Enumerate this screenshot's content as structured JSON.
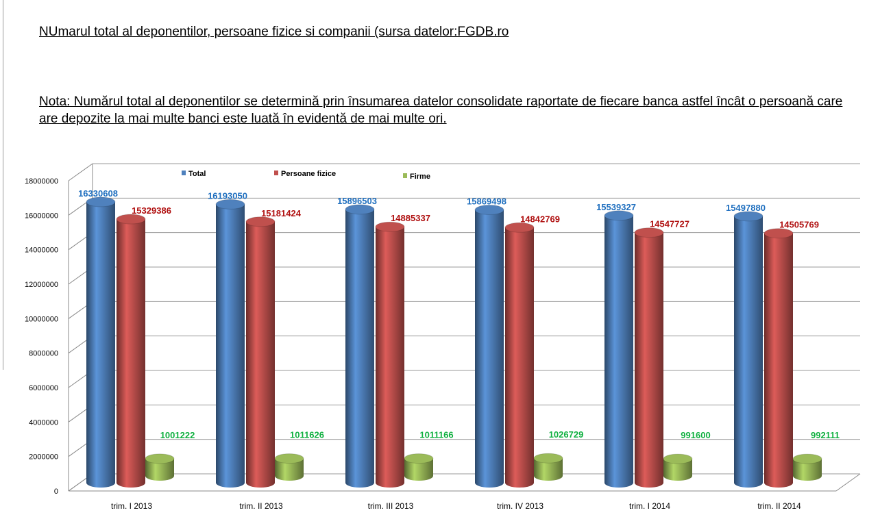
{
  "title": "NUmarul total al deponentilor, persoane fizice si companii (sursa datelor:FGDB.ro",
  "note": "Nota: Numărul total al deponentilor se determină prin însumarea datelor consolidate raportate de fiecare banca astfel încât o persoană care are depozite la mai multe banci este luată în evidentă de mai multe ori.",
  "chart_data": {
    "type": "bar",
    "title": "",
    "categories": [
      "trim. I 2013",
      "trim. II 2013",
      "trim. III 2013",
      "trim. IV 2013",
      "trim. I 2014",
      "trim. II 2014"
    ],
    "series": [
      {
        "name": "Total",
        "color": "#4f81bd",
        "label_color": "#1f6fbf",
        "values": [
          16330608,
          16193050,
          15896503,
          15869498,
          15539327,
          15497880
        ]
      },
      {
        "name": "Persoane fizice",
        "color": "#c0504d",
        "label_color": "#b01010",
        "values": [
          15329386,
          15181424,
          14885337,
          14842769,
          14547727,
          14505769
        ]
      },
      {
        "name": "Firme",
        "color": "#9bbb59",
        "label_color": "#10b040",
        "values": [
          1001222,
          1011626,
          1011166,
          1026729,
          991600,
          992111
        ]
      }
    ],
    "yticks": [
      "0",
      "2000000",
      "4000000",
      "6000000",
      "8000000",
      "10000000",
      "12000000",
      "14000000",
      "16000000",
      "18000000"
    ],
    "ylim": [
      0,
      18000000
    ],
    "legend": "top",
    "grid": true
  }
}
